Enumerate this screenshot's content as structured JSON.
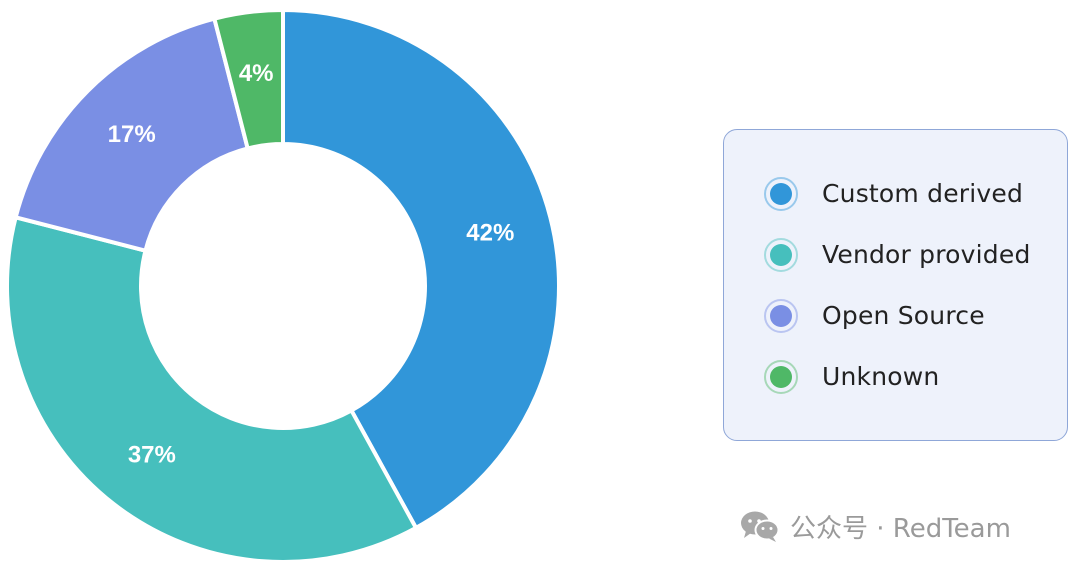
{
  "chart_data": {
    "type": "pie",
    "variant": "donut",
    "categories": [
      "Custom derived",
      "Vendor provided",
      "Open Source",
      "Unknown"
    ],
    "values": [
      42,
      37,
      17,
      4
    ],
    "value_labels": [
      "42%",
      "37%",
      "17%",
      "4%"
    ],
    "colors": [
      "#3196d9",
      "#46bfbd",
      "#7a8fe4",
      "#4fb867"
    ],
    "start_angle_deg": 0,
    "direction": "clockwise",
    "legend": {
      "placement": "right",
      "items": [
        {
          "label": "Custom derived",
          "color": "#3196d9"
        },
        {
          "label": "Vendor provided",
          "color": "#46bfbd"
        },
        {
          "label": "Open Source",
          "color": "#7a8fe4"
        },
        {
          "label": "Unknown",
          "color": "#4fb867"
        }
      ]
    }
  },
  "watermark": {
    "icon": "wechat-icon",
    "text": "公众号 · RedTeam"
  }
}
